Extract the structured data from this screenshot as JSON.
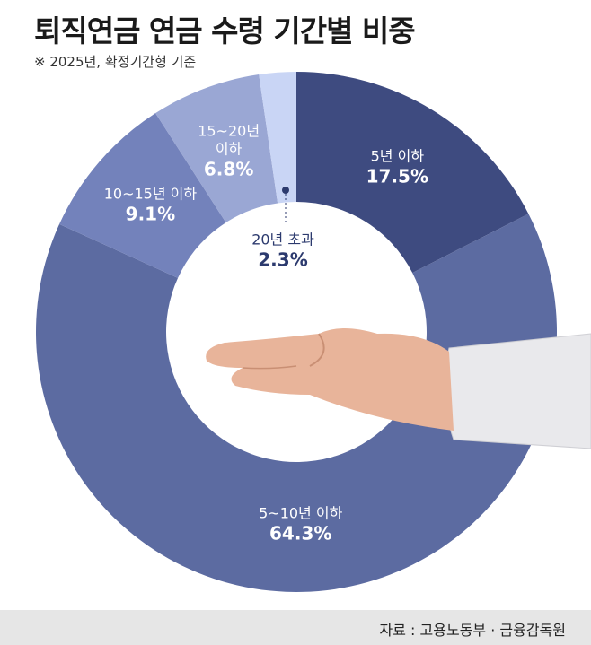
{
  "title": "퇴직연금 연금 수령 기간별 비중",
  "subtitle": "※ 2025년, 확정기간형 기준",
  "chart_data": {
    "type": "donut",
    "categories": [
      "5년 이하",
      "5~10년 이하",
      "10~15년 이하",
      "15~20년 이하",
      "20년 초과"
    ],
    "values": [
      17.5,
      64.3,
      9.1,
      6.8,
      2.3
    ],
    "value_labels": [
      "17.5%",
      "64.3%",
      "9.1%",
      "6.8%",
      "2.3%"
    ],
    "colors": [
      "#3e4b80",
      "#5c6ba1",
      "#7382bb",
      "#9aa7d4",
      "#c9d5f5"
    ]
  },
  "source": "자료 : 고용노동부 · 금융감독원"
}
